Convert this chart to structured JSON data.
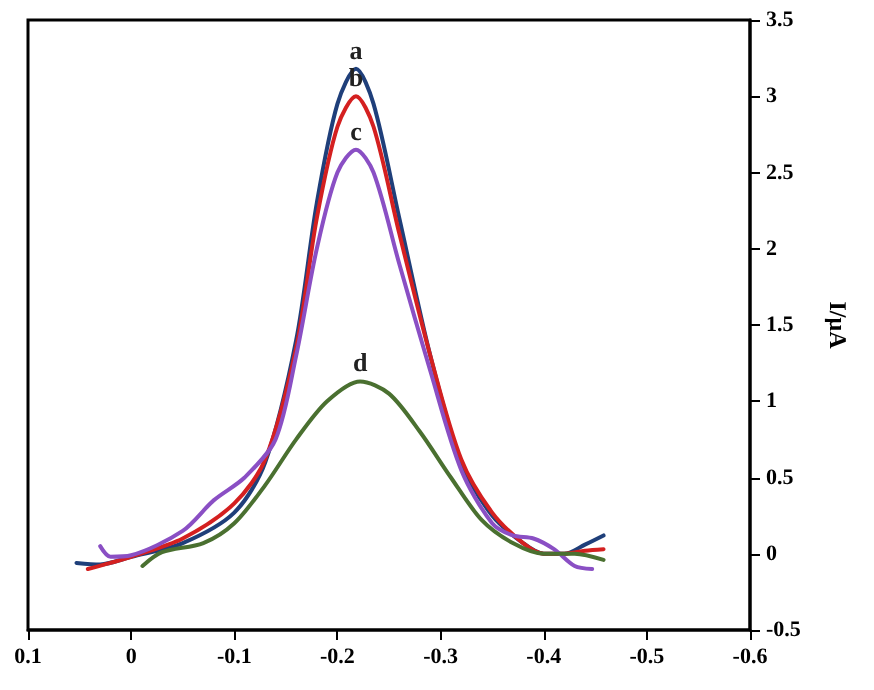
{
  "chart_data": {
    "type": "line",
    "ylabel": "I/μA",
    "xlim": [
      0.1,
      -0.6
    ],
    "ylim": [
      -0.5,
      3.5
    ],
    "xticks": [
      0.1,
      0,
      -0.1,
      -0.2,
      -0.3,
      -0.4,
      -0.5,
      -0.6
    ],
    "yticks": [
      -0.5,
      0,
      0.5,
      1,
      1.5,
      2,
      2.5,
      3,
      3.5
    ],
    "grid": false,
    "marker": "none",
    "line_style": "solid",
    "series": [
      {
        "name": "a",
        "color": "#1f3f7a",
        "x": [
          0.053,
          0.03,
          0,
          -0.05,
          -0.1,
          -0.13,
          -0.16,
          -0.18,
          -0.2,
          -0.218,
          -0.235,
          -0.26,
          -0.29,
          -0.32,
          -0.35,
          -0.38,
          -0.4,
          -0.42,
          -0.44,
          -0.458
        ],
        "values": [
          -0.06,
          -0.07,
          -0.02,
          0.07,
          0.27,
          0.6,
          1.4,
          2.3,
          2.95,
          3.18,
          2.95,
          2.2,
          1.3,
          0.6,
          0.25,
          0.07,
          0,
          0,
          0.06,
          0.12
        ]
      },
      {
        "name": "b",
        "color": "#d42020",
        "x": [
          0.042,
          0.02,
          0,
          -0.05,
          -0.1,
          -0.13,
          -0.16,
          -0.18,
          -0.2,
          -0.218,
          -0.235,
          -0.26,
          -0.29,
          -0.32,
          -0.35,
          -0.38,
          -0.4,
          -0.42,
          -0.44,
          -0.458
        ],
        "values": [
          -0.1,
          -0.06,
          -0.02,
          0.1,
          0.33,
          0.62,
          1.35,
          2.2,
          2.8,
          3.0,
          2.8,
          2.1,
          1.3,
          0.62,
          0.27,
          0.07,
          0,
          0,
          0.02,
          0.03
        ]
      },
      {
        "name": "c",
        "color": "#8a4fc4",
        "x": [
          0.03,
          0.02,
          0,
          -0.05,
          -0.08,
          -0.11,
          -0.14,
          -0.16,
          -0.18,
          -0.2,
          -0.218,
          -0.235,
          -0.26,
          -0.29,
          -0.32,
          -0.35,
          -0.37,
          -0.39,
          -0.41,
          -0.43,
          -0.447
        ],
        "values": [
          0.05,
          -0.02,
          -0.01,
          0.15,
          0.35,
          0.5,
          0.75,
          1.3,
          2.0,
          2.5,
          2.65,
          2.5,
          1.9,
          1.2,
          0.55,
          0.2,
          0.12,
          0.1,
          0.03,
          -0.08,
          -0.1
        ]
      },
      {
        "name": "d",
        "color": "#4a7030",
        "x": [
          -0.011,
          -0.03,
          -0.07,
          -0.1,
          -0.13,
          -0.16,
          -0.19,
          -0.222,
          -0.25,
          -0.28,
          -0.31,
          -0.34,
          -0.37,
          -0.4,
          -0.43,
          -0.458
        ],
        "values": [
          -0.08,
          0.01,
          0.07,
          0.2,
          0.45,
          0.75,
          1.0,
          1.13,
          1.05,
          0.8,
          0.5,
          0.22,
          0.07,
          0,
          0,
          -0.04
        ]
      }
    ]
  }
}
